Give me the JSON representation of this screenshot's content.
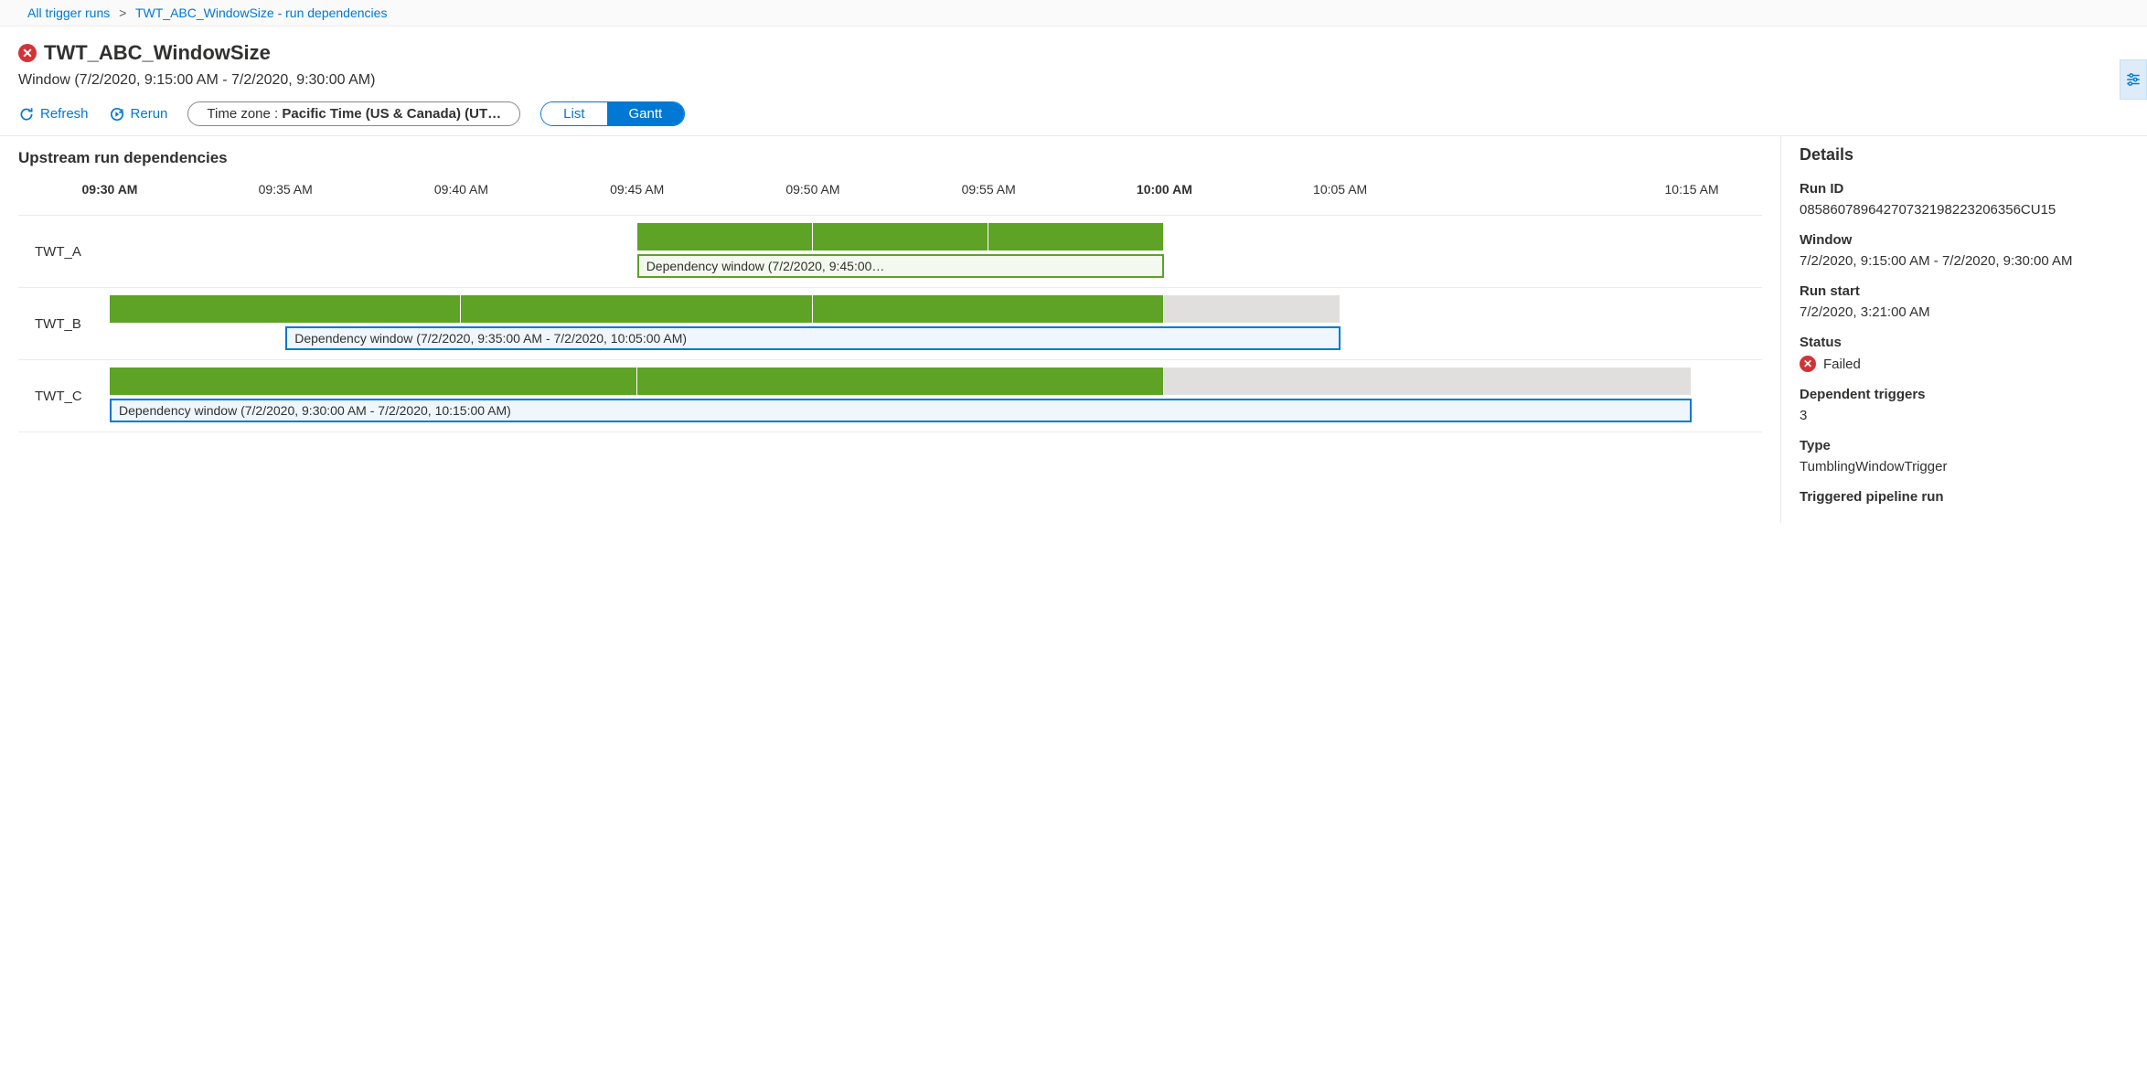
{
  "breadcrumb": {
    "root": "All trigger runs",
    "current": "TWT_ABC_WindowSize - run dependencies"
  },
  "header": {
    "title": "TWT_ABC_WindowSize",
    "status_icon": "error",
    "window_text": "Window (7/2/2020, 9:15:00 AM - 7/2/2020, 9:30:00 AM)"
  },
  "toolbar": {
    "refresh_label": "Refresh",
    "rerun_label": "Rerun",
    "timezone_label": "Time zone : ",
    "timezone_value": "Pacific Time (US & Canada) (UT…",
    "view_list_label": "List",
    "view_gantt_label": "Gantt",
    "active_view": "Gantt"
  },
  "gantt": {
    "section_title": "Upstream run dependencies",
    "time_axis": {
      "start_min": 570,
      "end_min": 617,
      "ticks": [
        {
          "label": "09:30 AM",
          "min": 570,
          "bold": true
        },
        {
          "label": "09:35 AM",
          "min": 575,
          "bold": false
        },
        {
          "label": "09:40 AM",
          "min": 580,
          "bold": false
        },
        {
          "label": "09:45 AM",
          "min": 585,
          "bold": false
        },
        {
          "label": "09:50 AM",
          "min": 590,
          "bold": false
        },
        {
          "label": "09:55 AM",
          "min": 595,
          "bold": false
        },
        {
          "label": "10:00 AM",
          "min": 600,
          "bold": true
        },
        {
          "label": "10:05 AM",
          "min": 605,
          "bold": false
        },
        {
          "label": "10:15 AM",
          "min": 615,
          "bold": false
        }
      ]
    },
    "rows": [
      {
        "name": "TWT_A",
        "segments": [
          {
            "start": 585,
            "end": 590,
            "color": "green"
          },
          {
            "start": 590,
            "end": 595,
            "color": "green"
          },
          {
            "start": 595,
            "end": 600,
            "color": "green"
          }
        ],
        "dep_window": {
          "start": 585,
          "end": 600,
          "style": "green",
          "label": "Dependency window (7/2/2020, 9:45:00…"
        }
      },
      {
        "name": "TWT_B",
        "segments": [
          {
            "start": 570,
            "end": 580,
            "color": "green"
          },
          {
            "start": 580,
            "end": 590,
            "color": "green"
          },
          {
            "start": 590,
            "end": 600,
            "color": "green"
          },
          {
            "start": 600,
            "end": 605,
            "color": "grey"
          }
        ],
        "dep_window": {
          "start": 575,
          "end": 605,
          "style": "blue",
          "label": "Dependency window (7/2/2020, 9:35:00 AM - 7/2/2020, 10:05:00 AM)"
        }
      },
      {
        "name": "TWT_C",
        "segments": [
          {
            "start": 570,
            "end": 585,
            "color": "green"
          },
          {
            "start": 585,
            "end": 600,
            "color": "green"
          },
          {
            "start": 600,
            "end": 615,
            "color": "grey"
          }
        ],
        "dep_window": {
          "start": 570,
          "end": 615,
          "style": "blue",
          "label": "Dependency window (7/2/2020, 9:30:00 AM - 7/2/2020, 10:15:00 AM)"
        }
      }
    ]
  },
  "details": {
    "heading": "Details",
    "fields": {
      "run_id_label": "Run ID",
      "run_id": "08586078964270732198223206356CU15",
      "window_label": "Window",
      "window": "7/2/2020, 9:15:00 AM - 7/2/2020, 9:30:00 AM",
      "run_start_label": "Run start",
      "run_start": "7/2/2020, 3:21:00 AM",
      "status_label": "Status",
      "status": "Failed",
      "dep_triggers_label": "Dependent triggers",
      "dep_triggers": "3",
      "type_label": "Type",
      "type": "TumblingWindowTrigger",
      "triggered_run_label": "Triggered pipeline run"
    }
  },
  "colors": {
    "link": "#0078d4",
    "error": "#d13438",
    "bar_green": "#5ea226",
    "bar_grey": "#e1dfdd",
    "dep_blue": "#0078d4"
  }
}
